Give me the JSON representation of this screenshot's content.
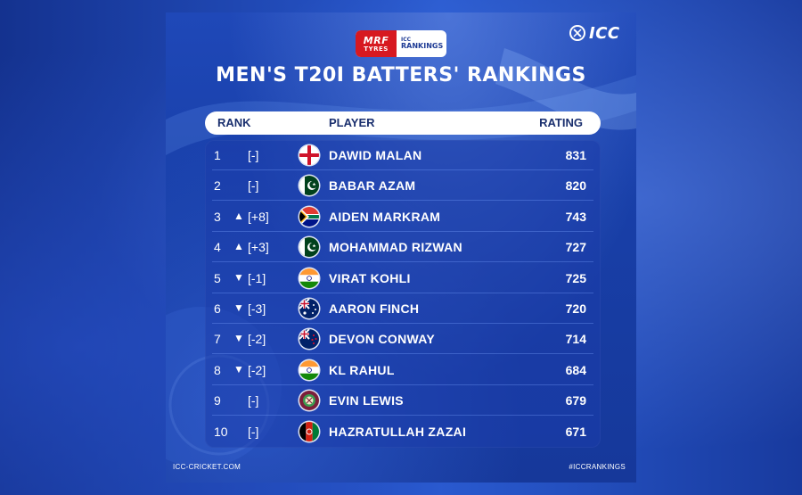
{
  "brand": {
    "sponsor_line1": "MRF",
    "sponsor_line2": "TYRES",
    "rankings_line1": "ICC",
    "rankings_line2": "RANKINGS",
    "icc_logo": "ICC"
  },
  "title": "MEN'S T20I BATTERS' RANKINGS",
  "headers": {
    "rank": "RANK",
    "player": "PLAYER",
    "rating": "RATING"
  },
  "rows": [
    {
      "rank": "1",
      "arrow": "",
      "move": "[-]",
      "flag": "england",
      "player": "DAWID MALAN",
      "rating": "831"
    },
    {
      "rank": "2",
      "arrow": "",
      "move": "[-]",
      "flag": "pakistan",
      "player": "BABAR AZAM",
      "rating": "820"
    },
    {
      "rank": "3",
      "arrow": "▲",
      "move": "[+8]",
      "flag": "south-africa",
      "player": "AIDEN MARKRAM",
      "rating": "743"
    },
    {
      "rank": "4",
      "arrow": "▲",
      "move": "[+3]",
      "flag": "pakistan",
      "player": "MOHAMMAD RIZWAN",
      "rating": "727"
    },
    {
      "rank": "5",
      "arrow": "▼",
      "move": "[-1]",
      "flag": "india",
      "player": "VIRAT KOHLI",
      "rating": "725"
    },
    {
      "rank": "6",
      "arrow": "▼",
      "move": "[-3]",
      "flag": "australia",
      "player": "AARON FINCH",
      "rating": "720"
    },
    {
      "rank": "7",
      "arrow": "▼",
      "move": "[-2]",
      "flag": "new-zealand",
      "player": "DEVON CONWAY",
      "rating": "714"
    },
    {
      "rank": "8",
      "arrow": "▼",
      "move": "[-2]",
      "flag": "india",
      "player": "KL RAHUL",
      "rating": "684"
    },
    {
      "rank": "9",
      "arrow": "",
      "move": "[-]",
      "flag": "west-indies",
      "player": "EVIN LEWIS",
      "rating": "679"
    },
    {
      "rank": "10",
      "arrow": "",
      "move": "[-]",
      "flag": "afghanistan",
      "player": "HAZRATULLAH ZAZAI",
      "rating": "671"
    }
  ],
  "footer": {
    "left": "ICC-CRICKET.COM",
    "right": "#ICCRANKINGS"
  },
  "colors": {
    "card_blue": "#1f48b8",
    "header_text": "#1a2f6e",
    "sponsor_red": "#d71920"
  }
}
